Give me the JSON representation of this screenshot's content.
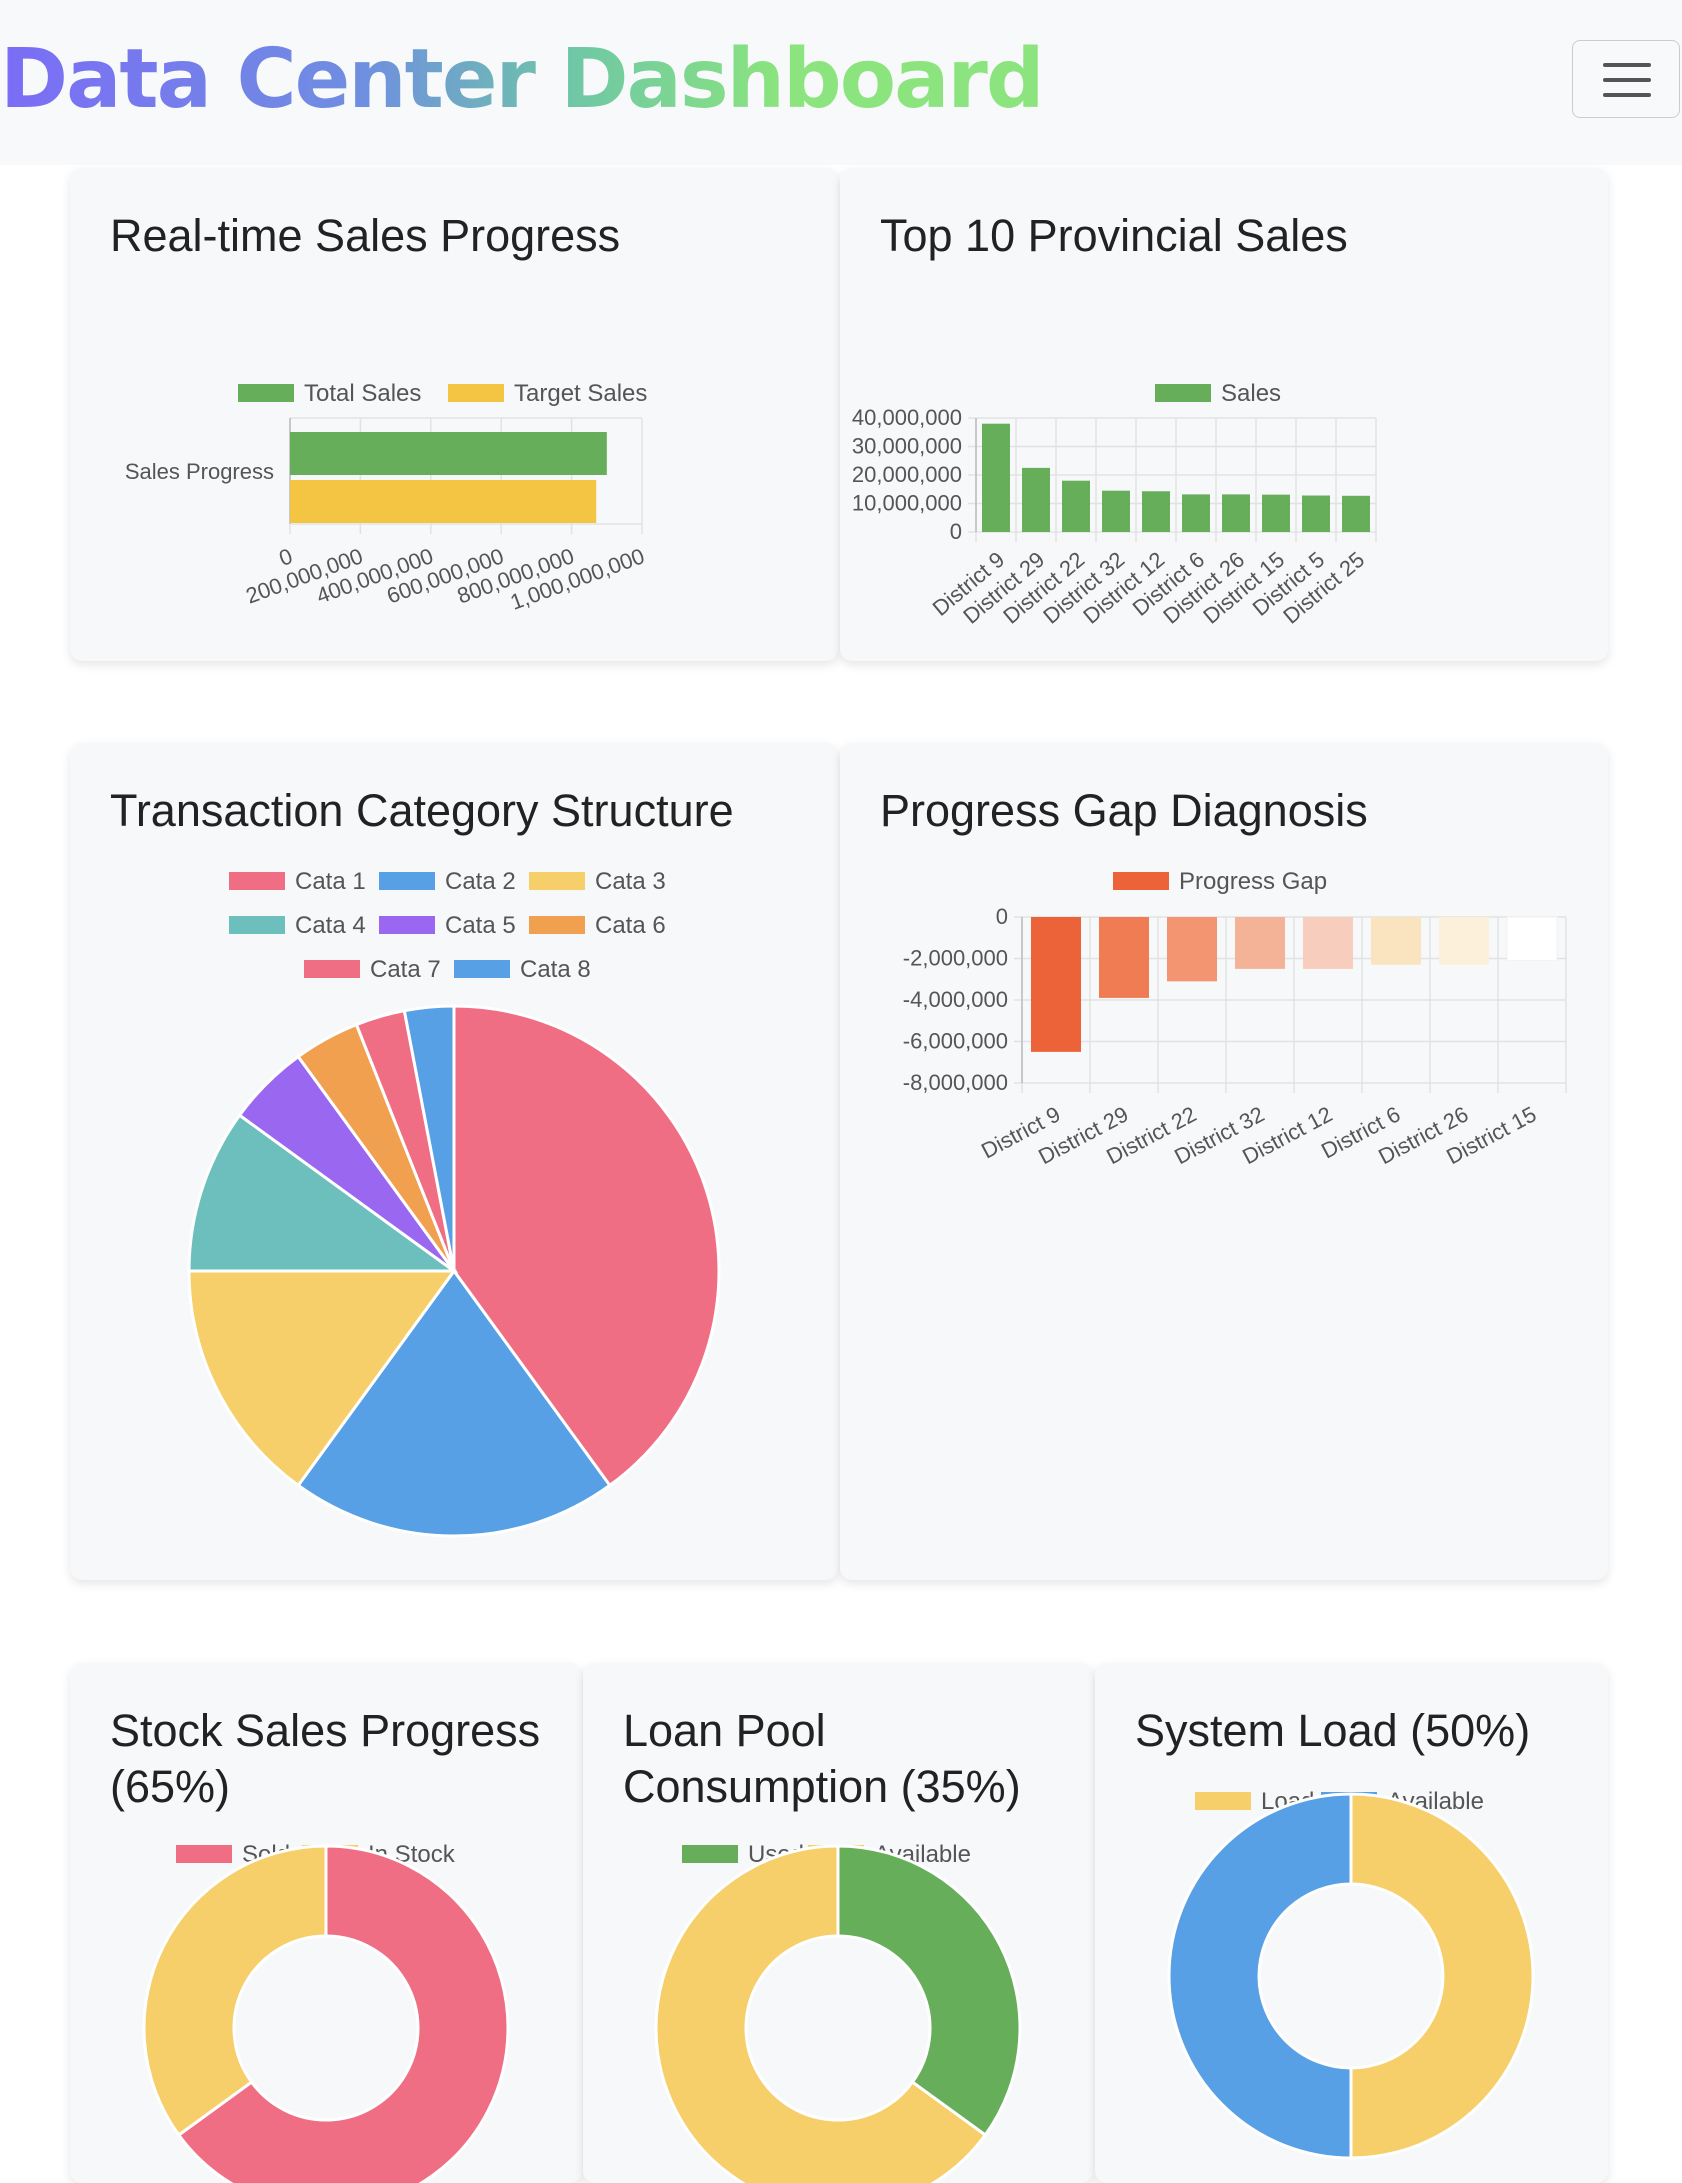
{
  "header": {
    "title": "Data Center Dashboard",
    "menu_icon": "hamburger-icon"
  },
  "cards": {
    "sales_progress": {
      "title": "Real-time Sales Progress"
    },
    "top_provinces": {
      "title": "Top 10 Provincial Sales"
    },
    "category_structure": {
      "title": "Transaction Category Structure"
    },
    "progress_gap": {
      "title": "Progress Gap Diagnosis"
    },
    "stock_sales": {
      "title_line1": "Stock Sales Progress",
      "title_line2": "(65%)"
    },
    "loan_pool": {
      "title_line1": "Loan Pool",
      "title_line2": "Consumption (35%)"
    },
    "system_load": {
      "title": "System Load (50%)"
    }
  },
  "chart_data": [
    {
      "id": "sales_progress",
      "type": "bar",
      "orientation": "horizontal",
      "categories": [
        "Sales Progress"
      ],
      "series": [
        {
          "name": "Total Sales",
          "values": [
            900000000
          ],
          "color": "#66ae5a"
        },
        {
          "name": "Target Sales",
          "values": [
            870000000
          ],
          "color": "#f4c542"
        }
      ],
      "xlim": [
        0,
        1000000000
      ],
      "x_ticks": [
        "0",
        "200,000,000",
        "400,000,000",
        "600,000,000",
        "800,000,000",
        "1,000,000,000"
      ],
      "grid": true,
      "legend": "top"
    },
    {
      "id": "top_provinces",
      "type": "bar",
      "categories": [
        "District 9",
        "District 29",
        "District 22",
        "District 32",
        "District 12",
        "District 6",
        "District 26",
        "District 15",
        "District 5",
        "District 25"
      ],
      "series": [
        {
          "name": "Sales",
          "values": [
            38000000,
            22500000,
            18000000,
            14500000,
            14300000,
            13200000,
            13200000,
            13100000,
            12800000,
            12700000
          ],
          "color": "#66ae5a"
        }
      ],
      "ylim": [
        0,
        40000000
      ],
      "y_ticks": [
        "40,000,000",
        "30,000,000",
        "20,000,000",
        "10,000,000",
        "0"
      ],
      "grid": true,
      "legend": "top"
    },
    {
      "id": "category_structure",
      "type": "pie",
      "labels": [
        "Cata 1",
        "Cata 2",
        "Cata 3",
        "Cata 4",
        "Cata 5",
        "Cata 6",
        "Cata 7",
        "Cata 8"
      ],
      "values": [
        40,
        20,
        15,
        10,
        5,
        4,
        3,
        3
      ],
      "colors": [
        "#ef6e84",
        "#57a0e5",
        "#f6cf6a",
        "#6dbfbe",
        "#9a67f0",
        "#f1a04f",
        "#ef6e84",
        "#57a0e5"
      ],
      "legend": "top"
    },
    {
      "id": "progress_gap",
      "type": "bar",
      "categories": [
        "District 9",
        "District 29",
        "District 22",
        "District 32",
        "District 12",
        "District 6",
        "District 26",
        "District 15"
      ],
      "series": [
        {
          "name": "Progress Gap",
          "values": [
            -6500000,
            -3900000,
            -3100000,
            -2500000,
            -2500000,
            -2300000,
            -2300000,
            -2100000
          ],
          "color": "#ec6339"
        }
      ],
      "bar_colors": [
        "#ec6339",
        "#ef7c52",
        "#f29570",
        "#f4b297",
        "#f7cdbd",
        "#fae3bf",
        "#fcf0da",
        "#ffffff"
      ],
      "ylim": [
        -8000000,
        0
      ],
      "y_ticks": [
        "0",
        "-2,000,000",
        "-4,000,000",
        "-6,000,000",
        "-8,000,000"
      ],
      "grid": true,
      "legend": "top"
    },
    {
      "id": "stock_sales",
      "type": "pie",
      "variant": "doughnut",
      "labels": [
        "Sold",
        "In Stock"
      ],
      "values": [
        65,
        35
      ],
      "colors": [
        "#ef6e84",
        "#f6cf6a"
      ],
      "legend": "top"
    },
    {
      "id": "loan_pool",
      "type": "pie",
      "variant": "doughnut",
      "labels": [
        "Used",
        "Available"
      ],
      "values": [
        35,
        65
      ],
      "colors": [
        "#66ae5a",
        "#f6cf6a"
      ],
      "legend": "top"
    },
    {
      "id": "system_load",
      "type": "pie",
      "variant": "doughnut",
      "labels": [
        "Load",
        "Available"
      ],
      "values": [
        50,
        50
      ],
      "colors": [
        "#f6cf6a",
        "#57a0e5"
      ],
      "legend": "top"
    }
  ]
}
